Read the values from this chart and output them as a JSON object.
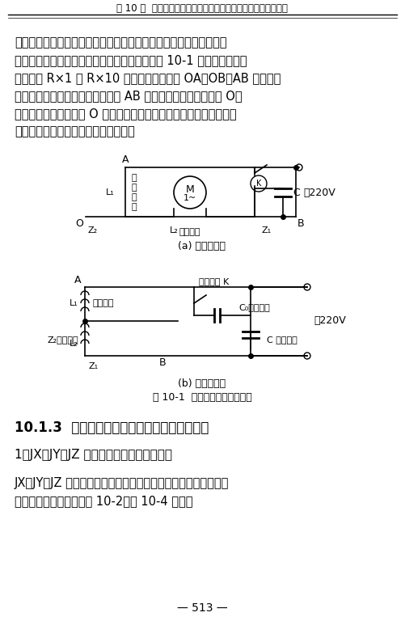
{
  "header_text": "第 10 章  单相交流异步电动机与特种电动机常见故障与检修方法",
  "para1": "值进行区分。直流电阻值小的为运行绕组，直流电阻值大的为启动绕",
  "para2": "组。在实际运行中，单相交流电动机的接线如图 10-1 所示。首先用万",
  "para3": "用电表的 R×1 和 R×10 欧姆挡，任意测量 OA、OB、AB 之间的电",
  "para4": "阻值。其中电阻值最大的一组即为 AB 端，另一端则为其公共端 O；",
  "para5": "然后再分别测量公共端 O 到另两个端点的电阻值，其中，电阻值小的",
  "para6": "为运行绕组，电阻值大的为启动绕组。",
  "fig_a_caption": "(a) 电容启动式",
  "fig_b_caption": "(b) 分相启动式",
  "fig_caption": "图 10-1  单相交流电动机的接线",
  "section_title": "10.1.3  单相交流异步电动机检修常用技术数据",
  "subsection_title": "1．JX、JY、JZ 老系列单相交流异步电动机",
  "body1": "JX、JY、JZ 老系列单相电容运转、启动及单相电阻启动交流异步",
  "body2": "电动机技术数据分别如表 10-2～表 10-4 所示。",
  "page_number": "— 513 —",
  "bg_color": "#ffffff",
  "text_color": "#000000",
  "font_size_header": 8.5,
  "font_size_body": 10.5,
  "font_size_section": 12,
  "font_size_subsection": 11
}
